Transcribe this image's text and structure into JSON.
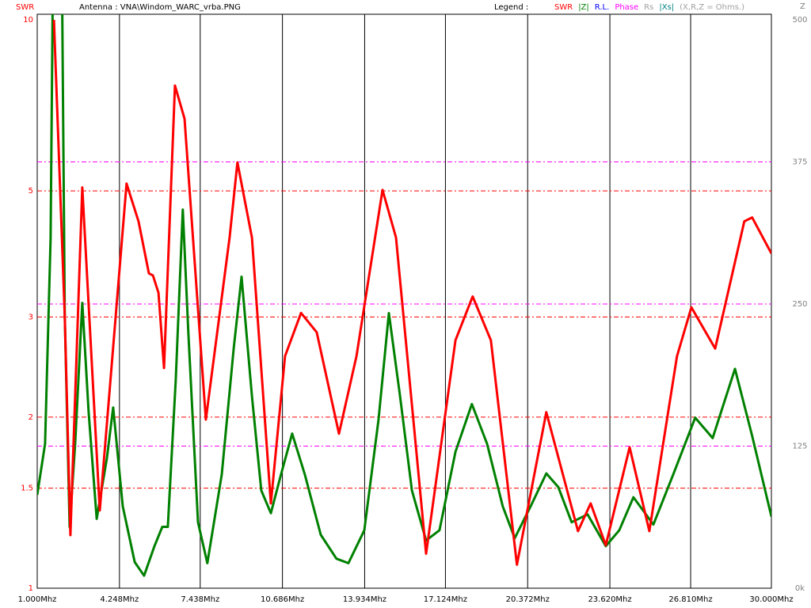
{
  "chart_data": {
    "type": "line",
    "title": "Antenna : VNA\\Windom_WARC_vrba.PNG",
    "y_label": "SWR",
    "y2_label": "Z",
    "legend_title": "Legend :",
    "other_legend": [
      {
        "name": "R.L.",
        "color": "#0000ff"
      },
      {
        "name": "Phase",
        "color": "#ff00ff"
      },
      {
        "name": "Rs",
        "color": "#a0a0a0"
      },
      {
        "name": "|Xs|",
        "color": "#008080"
      },
      {
        "name": "(X,R,Z = Ohms.)",
        "color": "#a0a0a0"
      }
    ],
    "xlim": [
      1,
      30
    ],
    "xticks": [
      {
        "value": 1,
        "label": "1.000Mhz"
      },
      {
        "value": 4.248,
        "label": "4.248Mhz"
      },
      {
        "value": 7.438,
        "label": "7.438Mhz"
      },
      {
        "value": 10.686,
        "label": "10.686Mhz"
      },
      {
        "value": 13.934,
        "label": "13.934Mhz"
      },
      {
        "value": 17.124,
        "label": "17.124Mhz"
      },
      {
        "value": 20.372,
        "label": "20.372Mhz"
      },
      {
        "value": 23.62,
        "label": "23.620Mhz"
      },
      {
        "value": 26.81,
        "label": "26.810Mhz"
      },
      {
        "value": 30,
        "label": "30.000Mhz"
      }
    ],
    "ylim": [
      1,
      10
    ],
    "y_log": true,
    "yticks": [
      1,
      1.5,
      2,
      3,
      5,
      10
    ],
    "y2lim": [
      0,
      500
    ],
    "y2ticks": [
      {
        "value": 0,
        "label": "0k"
      },
      125,
      250,
      375,
      500
    ],
    "grid": true,
    "series": [
      {
        "name": "SWR",
        "color": "#ff0000",
        "x": [
          1.66,
          2.09,
          2.31,
          2.78,
          3.47,
          4.53,
          5.0,
          5.41,
          5.57,
          5.79,
          6.01,
          6.44,
          6.82,
          7.66,
          8.6,
          8.91,
          9.48,
          10.23,
          10.79,
          11.42,
          12.04,
          12.92,
          13.61,
          14.64,
          15.17,
          16.36,
          17.52,
          18.2,
          18.92,
          19.95,
          21.11,
          22.36,
          22.86,
          23.46,
          24.4,
          25.18,
          26.27,
          26.84,
          27.78,
          28.93,
          29.24,
          30.0
        ],
        "values": [
          10,
          3.0,
          1.24,
          5.07,
          1.37,
          5.15,
          4.42,
          3.58,
          3.55,
          3.31,
          2.44,
          7.66,
          6.7,
          1.98,
          4.14,
          5.61,
          4.14,
          1.41,
          2.56,
          3.05,
          2.82,
          1.87,
          2.56,
          5.02,
          4.14,
          1.15,
          2.73,
          3.26,
          2.73,
          1.1,
          2.04,
          1.26,
          1.41,
          1.19,
          1.77,
          1.26,
          2.56,
          3.12,
          2.64,
          4.42,
          4.49,
          3.88
        ]
      },
      {
        "name": "|Z|",
        "color": "#008000",
        "axis": "y2",
        "x": [
          1.0,
          1.31,
          1.53,
          1.63,
          1.97,
          2.09,
          2.28,
          2.5,
          2.78,
          3.03,
          3.35,
          3.75,
          4.0,
          4.38,
          4.85,
          5.22,
          5.63,
          5.94,
          6.16,
          6.47,
          6.75,
          6.97,
          7.35,
          7.72,
          8.29,
          8.76,
          9.07,
          9.48,
          9.85,
          10.23,
          10.63,
          11.07,
          11.57,
          12.2,
          12.82,
          13.29,
          13.92,
          14.48,
          14.89,
          15.33,
          15.8,
          16.36,
          16.89,
          17.52,
          18.17,
          18.77,
          19.39,
          19.86,
          20.49,
          21.11,
          21.58,
          22.11,
          22.74,
          23.46,
          23.99,
          24.55,
          25.34,
          26.12,
          26.99,
          27.68,
          28.56,
          29.24,
          30.0
        ],
        "values": [
          82,
          127,
          308,
          560,
          560,
          239,
          54,
          127,
          251,
          155,
          61,
          114,
          159,
          72,
          23,
          11,
          37,
          54,
          54,
          183,
          333,
          225,
          58,
          22,
          100,
          211,
          274,
          169,
          86,
          66,
          100,
          136,
          100,
          47,
          26,
          22,
          51,
          148,
          242,
          169,
          86,
          42,
          51,
          120,
          162,
          127,
          72,
          44,
          72,
          101,
          89,
          58,
          65,
          37,
          51,
          80,
          56,
          100,
          150,
          132,
          193,
          134,
          63
        ]
      }
    ]
  }
}
